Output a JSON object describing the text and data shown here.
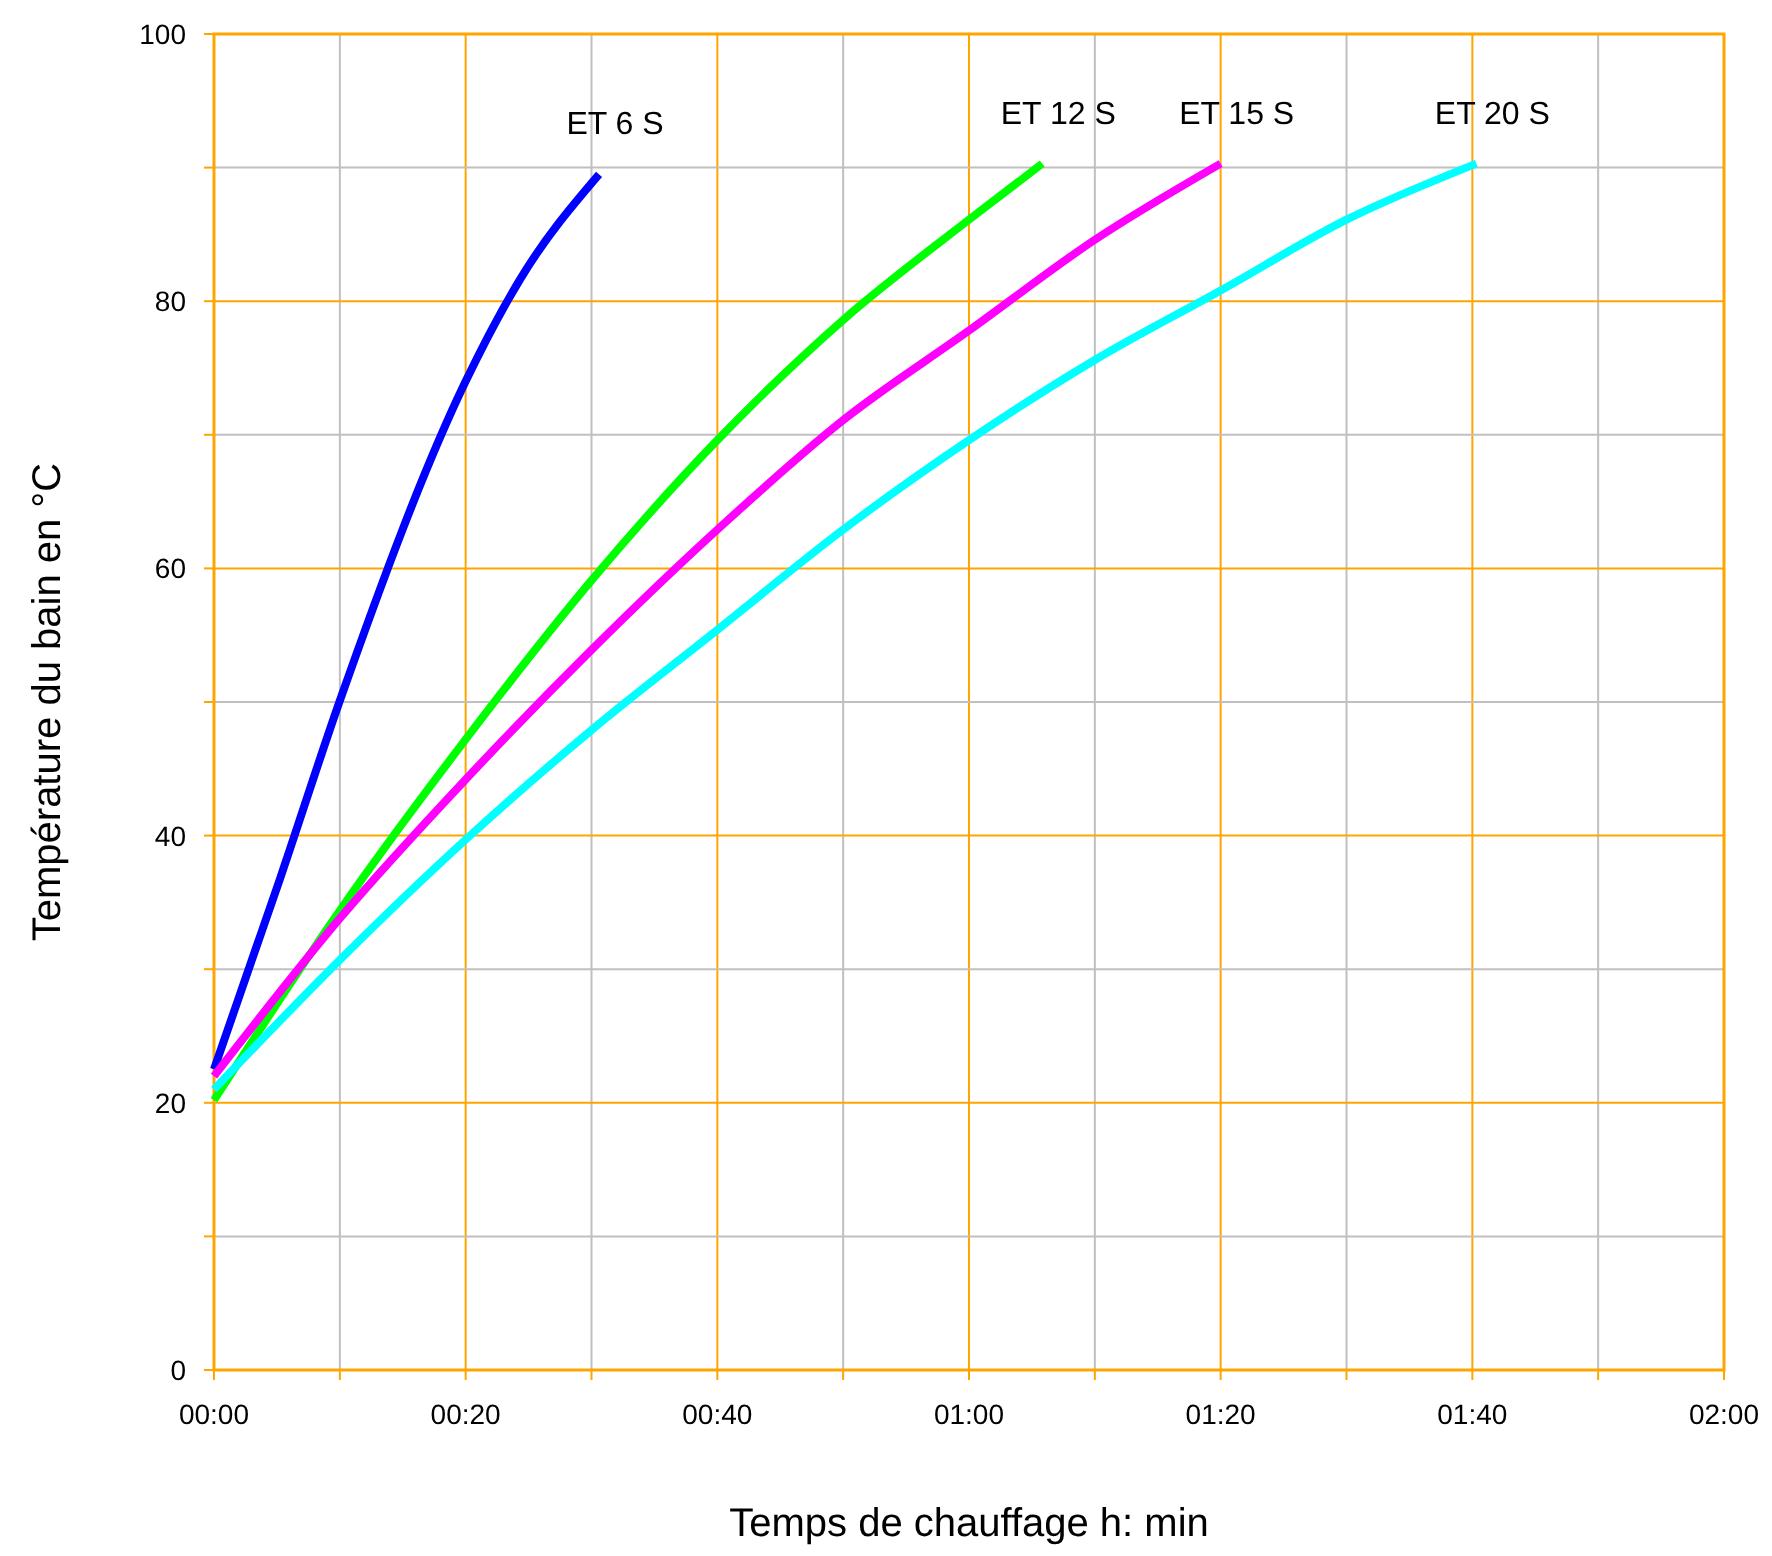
{
  "chart_data": {
    "type": "line",
    "xlabel": "Temps de chauffage h: min",
    "ylabel": "Température du bain en °C",
    "xlim": [
      0,
      2
    ],
    "ylim": [
      0,
      100
    ],
    "xticks": [
      {
        "value": 0,
        "label": "00:00"
      },
      {
        "value": 0.1667,
        "label": null
      },
      {
        "value": 0.3333,
        "label": "00:20"
      },
      {
        "value": 0.5,
        "label": null
      },
      {
        "value": 0.6667,
        "label": "00:40"
      },
      {
        "value": 0.8333,
        "label": null
      },
      {
        "value": 1,
        "label": "01:00"
      },
      {
        "value": 1.1667,
        "label": null
      },
      {
        "value": 1.3333,
        "label": "01:20"
      },
      {
        "value": 1.5,
        "label": null
      },
      {
        "value": 1.6667,
        "label": "01:40"
      },
      {
        "value": 1.8333,
        "label": null
      },
      {
        "value": 2,
        "label": "02:00"
      }
    ],
    "yticks": [
      0,
      {
        "value": 10,
        "label": null
      },
      20,
      {
        "value": 30,
        "label": null
      },
      40,
      {
        "value": 50,
        "label": null
      },
      60,
      {
        "value": 70,
        "label": null
      },
      80,
      {
        "value": 90,
        "label": null
      },
      100
    ],
    "grid": true,
    "marker": "none",
    "line_style": "solid",
    "series": [
      {
        "name": "ET 6 S",
        "color": "#0000ff",
        "x": [
          0,
          0.087,
          0.1667,
          0.3333,
          0.405,
          0.51
        ],
        "values": [
          22.5,
          36.7,
          50.1,
          74,
          81.6,
          89.5
        ]
      },
      {
        "name": "ET 12 S",
        "color": "#00ff00",
        "x": [
          0,
          0.1667,
          0.3333,
          0.5,
          0.6667,
          0.8333,
          1,
          1.097
        ],
        "values": [
          20.2,
          34.4,
          47.2,
          59.1,
          69.6,
          78.6,
          86.1,
          90.3
        ]
      },
      {
        "name": "ET 15 S",
        "color": "#ff00ff",
        "x": [
          0,
          0.1667,
          0.3333,
          0.5,
          0.6667,
          0.8333,
          1,
          1.1667,
          1.3333
        ],
        "values": [
          22,
          33.8,
          44.2,
          53.9,
          62.9,
          71.1,
          77.8,
          84.6,
          90.3
        ]
      },
      {
        "name": "ET 20 S",
        "color": "#00ffff",
        "x": [
          0,
          0.1667,
          0.3333,
          0.5,
          0.6667,
          0.8333,
          1,
          1.1667,
          1.3333,
          1.5,
          1.672
        ],
        "values": [
          21,
          30.7,
          39.7,
          47.9,
          55.4,
          62.9,
          69.6,
          75.6,
          80.8,
          86.1,
          90.3
        ]
      }
    ]
  }
}
